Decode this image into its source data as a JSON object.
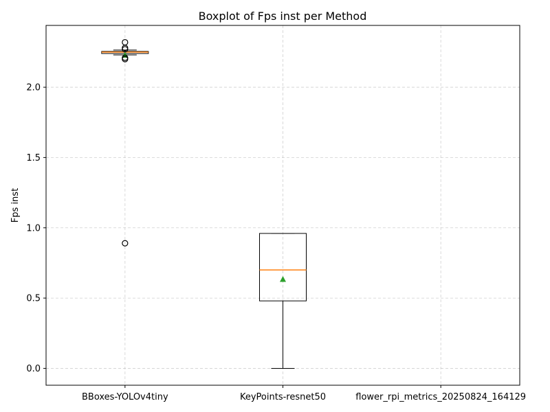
{
  "chart_data": {
    "type": "box",
    "title": "Boxplot of Fps inst per Method",
    "xlabel": "",
    "ylabel": "Fps inst",
    "ylim": [
      -0.12,
      2.44
    ],
    "yticks": [
      0.0,
      0.5,
      1.0,
      1.5,
      2.0
    ],
    "ytick_labels": [
      "0.0",
      "0.5",
      "1.0",
      "1.5",
      "2.0"
    ],
    "grid": true,
    "categories": [
      "BBoxes-YOLOv4tiny",
      "KeyPoints-resnet50",
      "flower_rpi_metrics_20250824_164129"
    ],
    "boxes": [
      {
        "name": "BBoxes-YOLOv4tiny",
        "whisker_low": 2.23,
        "q1": 2.24,
        "median": 2.25,
        "q3": 2.255,
        "whisker_high": 2.265,
        "mean": 2.23,
        "fliers": [
          2.32,
          2.28,
          2.27,
          2.21,
          2.2,
          0.89
        ]
      },
      {
        "name": "KeyPoints-resnet50",
        "whisker_low": 0.0,
        "q1": 0.48,
        "median": 0.7,
        "q3": 0.96,
        "whisker_high": 0.96,
        "mean": 0.635,
        "fliers": []
      },
      {
        "name": "flower_rpi_metrics_20250824_164129",
        "empty": true
      }
    ],
    "colors": {
      "median": "#ff7f0e",
      "mean": "#2ca02c",
      "box": "#000000"
    }
  }
}
